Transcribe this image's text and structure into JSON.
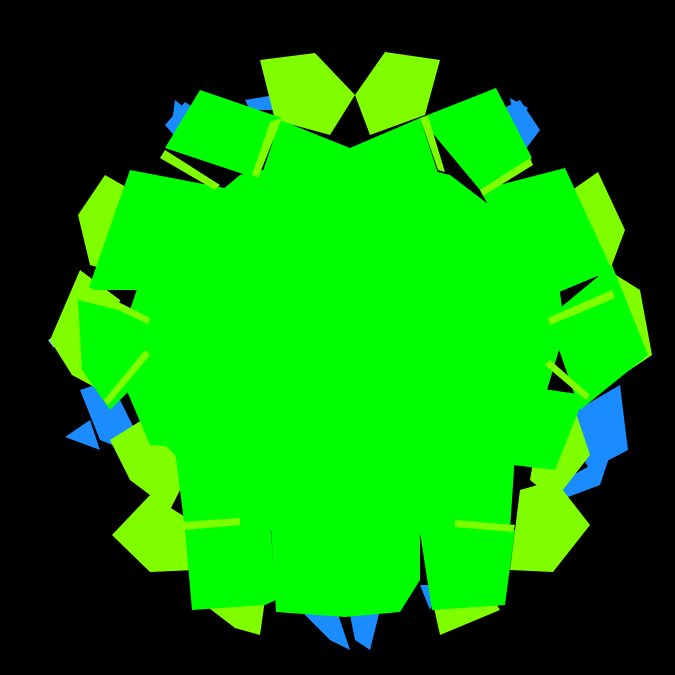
{
  "canvas": {
    "background": "#000000"
  },
  "colors": {
    "blue_star": "#1a8cff",
    "light_blue_spark": "#7fd4ff",
    "yellow_green": "#80ff00",
    "bright_green": "#00ff00"
  },
  "layers": [
    {
      "name": "blue-star-outline-layer",
      "color_key": "blue_star"
    },
    {
      "name": "yellow-green-petal-layer",
      "color_key": "yellow_green"
    },
    {
      "name": "bright-green-core-layer",
      "color_key": "bright_green"
    }
  ]
}
